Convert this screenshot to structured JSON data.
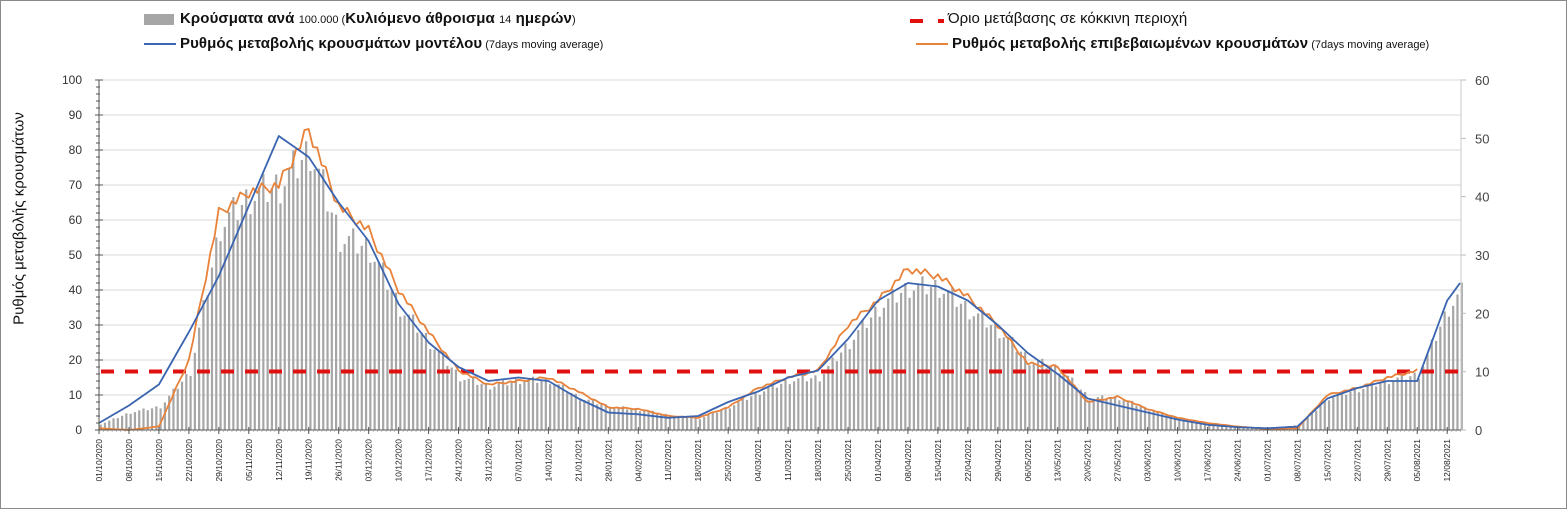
{
  "chart_data": {
    "type": "bar",
    "ylabel": "Ρυθμός μεταβολής κρουσμάτων",
    "y_left": {
      "min": 0,
      "max": 100,
      "step": 10,
      "ticks": [
        "0",
        "10",
        "20",
        "30",
        "40",
        "50",
        "60",
        "70",
        "80",
        "90",
        "100"
      ]
    },
    "y_right": {
      "min": 0,
      "max": 60,
      "step": 10,
      "ticks": [
        "0",
        "10",
        "20",
        "30",
        "40",
        "50",
        "60"
      ]
    },
    "threshold": {
      "value_left": 16.7,
      "value_right": 10,
      "color": "#e01010"
    },
    "grid": true,
    "legend_position": "top",
    "legend": [
      {
        "key": "bars",
        "parts": [
          {
            "text": "Κρούσματα ανά ",
            "style": "big"
          },
          {
            "text": "100.000",
            "style": "small"
          },
          {
            "text": " (",
            "style": "small"
          },
          {
            "text": "Κυλιόμενο άθροισμα ",
            "style": "big"
          },
          {
            "text": "14",
            "style": "small"
          },
          {
            "text": " ημερών",
            "style": "big"
          },
          {
            "text": ")",
            "style": "small"
          }
        ]
      },
      {
        "key": "model",
        "parts": [
          {
            "text": "Ρυθμός μεταβολής κρουσμάτων μοντέλου",
            "style": "big"
          },
          {
            "text": " (7days moving average)",
            "style": "small"
          }
        ]
      },
      {
        "key": "threshold",
        "parts": [
          {
            "text": "Όριο μετάβασης σε κόκκινη περιοχή",
            "style": "light"
          }
        ]
      },
      {
        "key": "confirmed",
        "parts": [
          {
            "text": "Ρυθμός μεταβολής επιβεβαιωμένων κρουσμάτων",
            "style": "big"
          },
          {
            "text": " (7days moving average)",
            "style": "small"
          }
        ]
      }
    ],
    "colors": {
      "bars": "#a6a6a6",
      "model": "#3b65b0",
      "confirmed": "#e8823a",
      "grid": "#d9d9d9",
      "axis": "#555555"
    },
    "x_tick_labels": [
      "01/10/2020",
      "08/10/2020",
      "15/10/2020",
      "22/10/2020",
      "29/10/2020",
      "05/11/2020",
      "12/11/2020",
      "19/11/2020",
      "26/11/2020",
      "03/12/2020",
      "10/12/2020",
      "17/12/2020",
      "24/12/2020",
      "31/12/2020",
      "07/01/2021",
      "14/01/2021",
      "21/01/2021",
      "28/01/2021",
      "04/02/2021",
      "11/02/2021",
      "18/02/2021",
      "25/02/2021",
      "04/03/2021",
      "11/03/2021",
      "18/03/2021",
      "25/03/2021",
      "01/04/2021",
      "08/04/2021",
      "15/04/2021",
      "22/04/2021",
      "29/04/2021",
      "06/05/2021",
      "13/05/2021",
      "20/05/2021",
      "27/05/2021",
      "03/06/2021",
      "10/06/2021",
      "17/06/2021",
      "24/06/2021",
      "01/07/2021",
      "08/07/2021",
      "15/07/2021",
      "22/07/2021",
      "29/07/2021",
      "05/08/2021",
      "12/08/2021"
    ],
    "x_days": [
      0,
      7,
      14,
      21,
      28,
      35,
      42,
      49,
      56,
      63,
      70,
      77,
      84,
      91,
      98,
      105,
      112,
      119,
      126,
      133,
      140,
      147,
      154,
      161,
      168,
      175,
      182,
      189,
      196,
      203,
      210,
      217,
      224,
      231,
      238,
      245,
      252,
      259,
      266,
      273,
      280,
      287,
      294,
      301,
      308,
      315,
      318
    ],
    "total_days": 319,
    "series": [
      {
        "name": "Κρούσματα ανά 100.000 (Κυλιόμενο άθροισμα 14 ημερών)",
        "axis": "right",
        "kind": "bar",
        "values": [
          1,
          3,
          4,
          10,
          35,
          40,
          42,
          48,
          33,
          31,
          21,
          15,
          9,
          7.5,
          8.5,
          8.5,
          5.5,
          4,
          3.5,
          2.5,
          2,
          4,
          6.5,
          8.5,
          9,
          15,
          21,
          24.5,
          24.5,
          20.5,
          17,
          12,
          10.5,
          5.5,
          5.5,
          3.5,
          2,
          1,
          0.6,
          0.3,
          0.8,
          5.5,
          7,
          8.5,
          9.5,
          21,
          23.5
        ]
      },
      {
        "name": "Ρυθμός μεταβολής κρουσμάτων μοντέλου (7days moving average)",
        "axis": "left",
        "kind": "line",
        "values": [
          2,
          7,
          13,
          28,
          44,
          64,
          84,
          78,
          65,
          54,
          36,
          25,
          18,
          14,
          15,
          14,
          9,
          5,
          4.5,
          3.5,
          4,
          8,
          11,
          15,
          17,
          26,
          37,
          42,
          41,
          37,
          30,
          22,
          16,
          9,
          7,
          5,
          3,
          1.5,
          0.8,
          0.5,
          1,
          9,
          12,
          14,
          14,
          37,
          42
        ]
      },
      {
        "name": "Ρυθμός μεταβολής επιβεβαιωμένων κρουσμάτων (7days moving average)",
        "axis": "left",
        "kind": "line",
        "values": [
          0.5,
          0,
          1,
          20,
          62,
          68,
          70,
          86,
          64,
          57,
          40,
          28,
          17,
          13,
          14,
          15,
          11,
          6.5,
          6,
          4,
          3.5,
          6.5,
          12,
          15,
          17,
          30,
          37,
          46,
          44,
          38,
          30,
          19,
          18,
          8,
          9.5,
          6,
          3.5,
          2,
          1,
          0.3,
          0.5,
          10,
          12,
          15,
          17,
          null,
          null
        ]
      }
    ]
  }
}
